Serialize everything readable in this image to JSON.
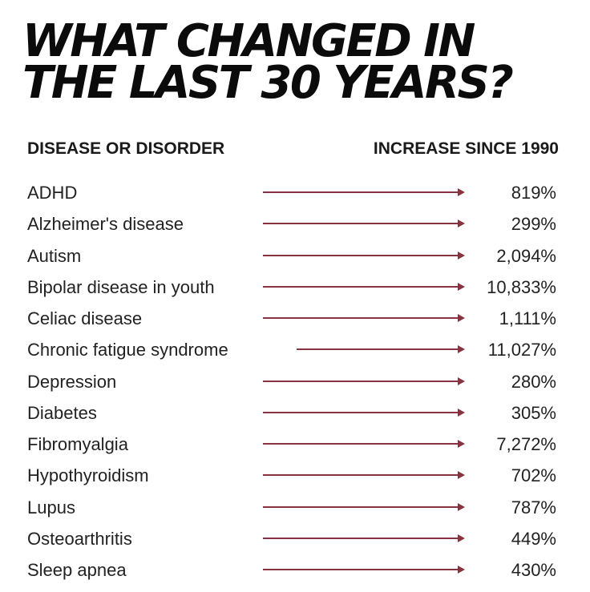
{
  "title": {
    "line1": "WHAT CHANGED IN",
    "line2": "THE LAST 30 YEARS?"
  },
  "headers": {
    "left": "DISEASE OR DISORDER",
    "right": "INCREASE SINCE 1990"
  },
  "colors": {
    "arrow": "#8a3340",
    "text": "#1a1a1a",
    "background": "#ffffff"
  },
  "rows": [
    {
      "disease": "ADHD",
      "increase": "819%"
    },
    {
      "disease": "Alzheimer's disease",
      "increase": "299%"
    },
    {
      "disease": "Autism",
      "increase": "2,094%"
    },
    {
      "disease": "Bipolar disease in youth",
      "increase": "10,833%"
    },
    {
      "disease": "Celiac disease",
      "increase": "1,111%"
    },
    {
      "disease": "Chronic fatigue syndrome",
      "increase": "11,027%"
    },
    {
      "disease": "Depression",
      "increase": "280%"
    },
    {
      "disease": "Diabetes",
      "increase": "305%"
    },
    {
      "disease": "Fibromyalgia",
      "increase": "7,272%"
    },
    {
      "disease": "Hypothyroidism",
      "increase": "702%"
    },
    {
      "disease": "Lupus",
      "increase": "787%"
    },
    {
      "disease": "Osteoarthritis",
      "increase": "449%"
    },
    {
      "disease": "Sleep apnea",
      "increase": "430%"
    }
  ]
}
